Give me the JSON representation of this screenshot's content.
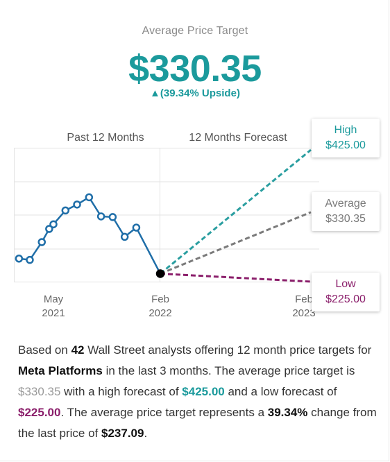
{
  "header": {
    "title": "Average Price Target",
    "value": "$330.35",
    "upside": "▲(39.34% Upside)"
  },
  "chart_data": {
    "type": "line",
    "section_labels": [
      "Past 12 Months",
      "12 Months Forecast"
    ],
    "x_ticks": [
      {
        "month": "May",
        "year": "2021"
      },
      {
        "month": "Feb",
        "year": "2022"
      },
      {
        "month": "Feb",
        "year": "2023"
      }
    ],
    "series": [
      {
        "values": [
          {
            "x": "2021-02",
            "y": 260.0
          },
          {
            "x": "2021-03",
            "y": 258.0
          },
          {
            "x": "2021-04",
            "y": 285.0
          },
          {
            "x": "2021-04-20",
            "y": 305.0
          },
          {
            "x": "2021-05",
            "y": 312.0
          },
          {
            "x": "2021-06",
            "y": 333.0
          },
          {
            "x": "2021-07",
            "y": 342.0
          },
          {
            "x": "2021-08",
            "y": 353.0
          },
          {
            "x": "2021-09",
            "y": 324.0
          },
          {
            "x": "2021-10",
            "y": 323.0
          },
          {
            "x": "2021-11",
            "y": 293.0
          },
          {
            "x": "2021-12",
            "y": 307.0
          },
          {
            "x": "2022-02",
            "y": 237.09
          }
        ]
      }
    ],
    "forecast": {
      "start": 237.09,
      "high": {
        "label": "High",
        "value": "$425.00",
        "y": 425.0
      },
      "average": {
        "label": "Average",
        "value": "$330.35",
        "y": 330.35
      },
      "low": {
        "label": "Low",
        "value": "$225.00",
        "y": 225.0
      }
    },
    "grid": true,
    "colors": {
      "history": "#1f6ea8",
      "high": "#2a9ea0",
      "average": "#7b7b7b",
      "low": "#8b1f6b"
    }
  },
  "description": {
    "p1": "Based on ",
    "analyst_count": "42",
    "p2": " Wall Street analysts offering 12 month price targets for ",
    "company": "Meta Platforms",
    "p3": " in the last 3 months. The average price target is ",
    "avg": "$330.35",
    "p4": " with a high forecast of ",
    "high": "$425.00",
    "p5": " and a low forecast of ",
    "low": "$225.00",
    "p6": ". The average price target represents a ",
    "change": "39.34%",
    "p7": " change from the last price of ",
    "last": "$237.09",
    "p8": "."
  }
}
